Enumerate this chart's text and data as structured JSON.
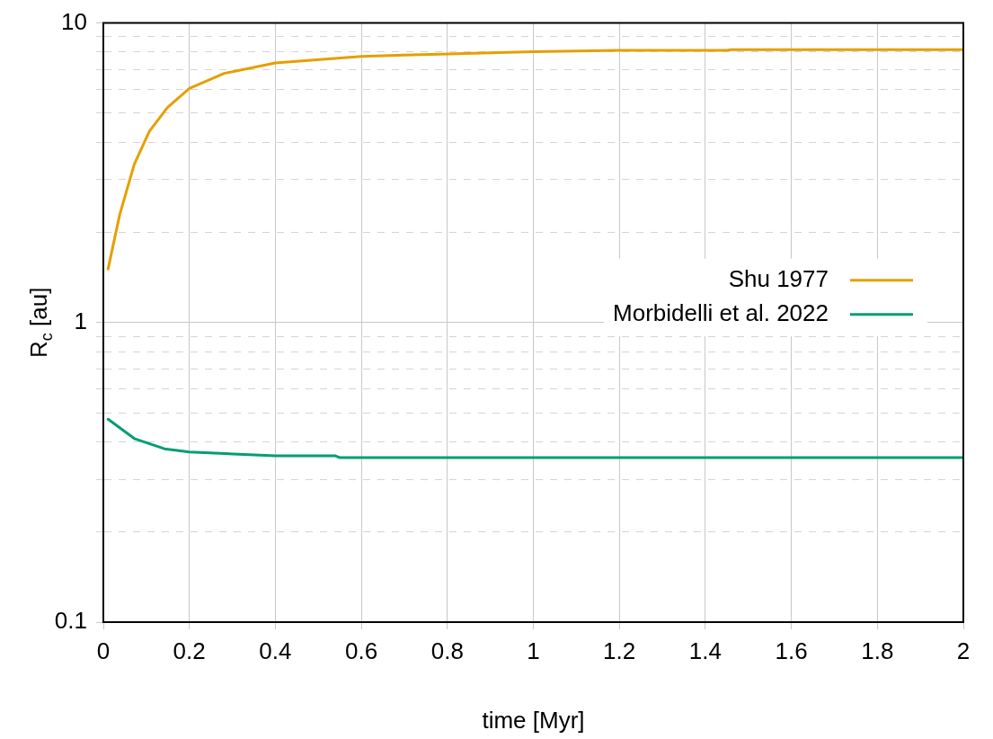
{
  "chart_data": {
    "type": "line",
    "xlabel": "time [Myr]",
    "ylabel": "R$_{c}$ [au]",
    "log": "y",
    "grid": true,
    "legend": "right",
    "marker": "none",
    "line_style": "solid",
    "xlim": [
      0,
      2
    ],
    "xticks": [
      0,
      0.2,
      0.4,
      0.6,
      0.8,
      1,
      1.2,
      1.4,
      1.6,
      1.8,
      2
    ],
    "ylim": [
      0.1,
      10
    ],
    "yticks": [
      0.1,
      {
        "value": 0.2,
        "label": null
      },
      {
        "value": 0.3,
        "label": null
      },
      {
        "value": 0.4,
        "label": null
      },
      {
        "value": 0.5,
        "label": null
      },
      {
        "value": 0.6,
        "label": null
      },
      {
        "value": 0.7,
        "label": null
      },
      {
        "value": 0.8,
        "label": null
      },
      {
        "value": 0.9,
        "label": null
      },
      1,
      {
        "value": 2,
        "label": null
      },
      {
        "value": 3,
        "label": null
      },
      {
        "value": 4,
        "label": null
      },
      {
        "value": 5,
        "label": null
      },
      {
        "value": 6,
        "label": null
      },
      {
        "value": 7,
        "label": null
      },
      {
        "value": 8,
        "label": null
      },
      {
        "value": 9,
        "label": null
      },
      10
    ],
    "series": [
      {
        "name": "Shu 1977",
        "color": "#e69f00",
        "x": [
          0.011,
          0.038,
          0.072,
          0.107,
          0.149,
          0.2,
          0.281,
          0.4,
          0.6,
          0.7,
          1,
          1.2,
          1.45,
          1.46,
          2
        ],
        "values": [
          1.51,
          2.29,
          3.38,
          4.35,
          5.22,
          6.05,
          6.79,
          7.36,
          7.74,
          7.82,
          8.02,
          8.1,
          8.1,
          8.15,
          8.15
        ]
      },
      {
        "name": "Morbidelli et al. 2022",
        "color": "#009e73",
        "x": [
          0.011,
          0.072,
          0.142,
          0.2,
          0.4,
          0.54,
          0.55,
          2
        ],
        "values": [
          0.476,
          0.41,
          0.379,
          0.37,
          0.359,
          0.359,
          0.354,
          0.354
        ]
      }
    ]
  }
}
